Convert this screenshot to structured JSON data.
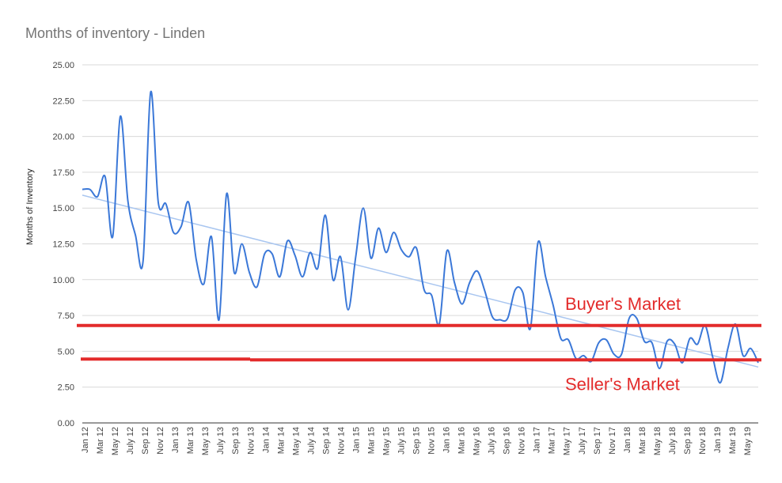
{
  "chart_data": {
    "type": "line",
    "title": "Months of inventory - Linden",
    "ylabel": "Months of Inventory",
    "ylim": [
      0,
      25
    ],
    "y_ticks": [
      "0.00",
      "2.50",
      "5.00",
      "7.50",
      "10.00",
      "12.50",
      "15.00",
      "17.50",
      "20.00",
      "22.50",
      "25.00"
    ],
    "x_tick_labels": [
      "Jan 12",
      "Mar 12",
      "May 12",
      "July 12",
      "Sep 12",
      "Nov 12",
      "Jan 13",
      "Mar 13",
      "May 13",
      "July 13",
      "Sep 13",
      "Nov 13",
      "Jan 14",
      "Mar 14",
      "May 14",
      "July 14",
      "Sep 14",
      "Nov 14",
      "Jan 15",
      "Mar 15",
      "May 15",
      "July 15",
      "Sep 15",
      "Nov 15",
      "Jan 16",
      "Mar 16",
      "May 16",
      "July 16",
      "Sep 16",
      "Nov 16",
      "Jan 17",
      "Mar 17",
      "May 17",
      "July 17",
      "Sep 17",
      "Nov 17",
      "Jan 18",
      "Mar 18",
      "May 18",
      "July 18",
      "Sep 18",
      "Nov 18",
      "Jan 19",
      "Mar 19",
      "May 19"
    ],
    "grid": true,
    "series": [
      {
        "color": "#3b78d8",
        "values": [
          16.3,
          16.3,
          15.8,
          17.2,
          13.0,
          21.4,
          15.5,
          13.1,
          11.3,
          23.1,
          15.4,
          15.3,
          13.3,
          13.7,
          15.4,
          11.4,
          9.7,
          13.0,
          7.2,
          16.0,
          10.5,
          12.5,
          10.5,
          9.5,
          11.8,
          11.8,
          10.2,
          12.7,
          11.7,
          10.2,
          11.9,
          10.8,
          14.5,
          10.0,
          11.6,
          7.9,
          11.6,
          15.0,
          11.5,
          13.6,
          11.9,
          13.3,
          12.1,
          11.6,
          12.2,
          9.3,
          8.9,
          6.9,
          12.0,
          9.8,
          8.3,
          9.8,
          10.6,
          9.2,
          7.4,
          7.2,
          7.3,
          9.3,
          9.1,
          6.6,
          12.6,
          10.2,
          8.2,
          5.9,
          5.8,
          4.5,
          4.7,
          4.3,
          5.6,
          5.8,
          4.8,
          4.8,
          7.3,
          7.3,
          5.7,
          5.6,
          3.8,
          5.7,
          5.5,
          4.2,
          5.9,
          5.5,
          6.8,
          4.6,
          2.8,
          5.2,
          6.9,
          4.7,
          5.2,
          4.2
        ]
      }
    ],
    "trendline": {
      "start": 15.9,
      "end": 3.9,
      "color": "#a9c6f0"
    },
    "annotations": [
      {
        "text": "Buyer's Market",
        "y": 6.8,
        "color": "#e32b2b"
      },
      {
        "text": "Seller's Market",
        "y": 4.4,
        "color": "#e32b2b"
      }
    ]
  }
}
